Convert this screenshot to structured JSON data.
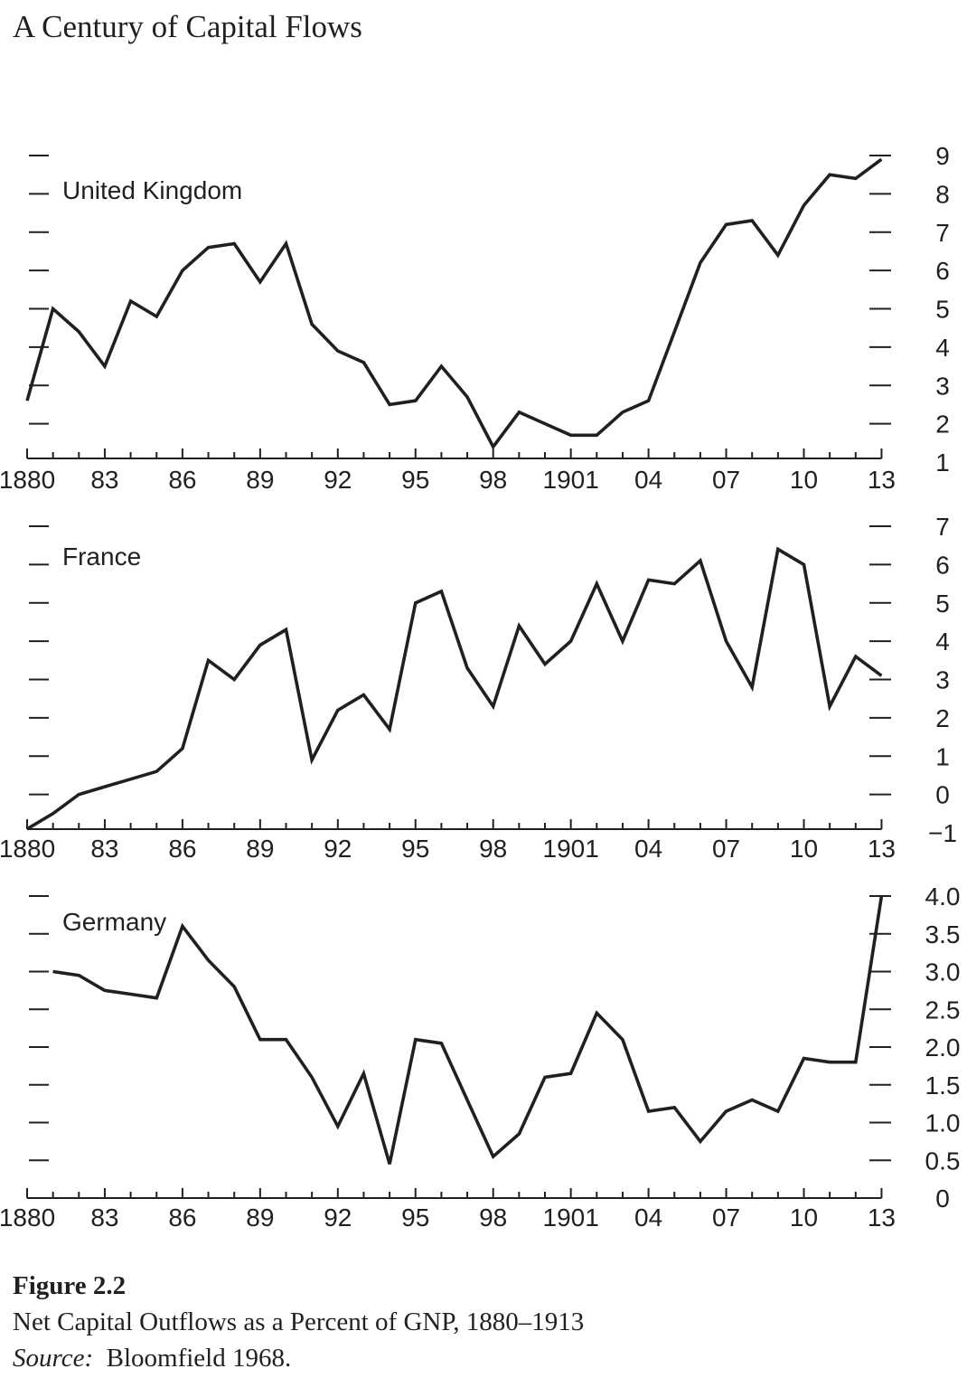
{
  "title": "A Century of Capital Flows",
  "caption": {
    "figure_label": "Figure 2.2",
    "text": "Net Capital Outflows as a Percent of GNP, 1880–1913",
    "source_label": "Source:",
    "source_text": "Bloomfield 1968."
  },
  "chart_data": [
    {
      "type": "line",
      "name": "United Kingdom",
      "x_ticks": [
        "1880",
        "83",
        "86",
        "89",
        "92",
        "95",
        "98",
        "1901",
        "04",
        "07",
        "10",
        "13"
      ],
      "y_ticks": [
        "1",
        "2",
        "3",
        "4",
        "5",
        "6",
        "7",
        "8",
        "9"
      ],
      "ylim": [
        1,
        9
      ],
      "xlim": [
        1880,
        1913
      ],
      "x": [
        1880,
        1881,
        1882,
        1883,
        1884,
        1885,
        1886,
        1887,
        1888,
        1889,
        1890,
        1891,
        1892,
        1893,
        1894,
        1895,
        1896,
        1897,
        1898,
        1899,
        1900,
        1901,
        1902,
        1903,
        1904,
        1905,
        1906,
        1907,
        1908,
        1909,
        1910,
        1911,
        1912,
        1913
      ],
      "values": [
        2.6,
        5.0,
        4.4,
        3.5,
        5.2,
        4.8,
        6.0,
        6.6,
        6.7,
        5.7,
        6.7,
        4.6,
        3.9,
        3.6,
        2.5,
        2.6,
        3.5,
        2.7,
        1.4,
        2.3,
        2.0,
        1.7,
        1.7,
        2.3,
        2.6,
        4.4,
        6.2,
        7.2,
        7.3,
        6.4,
        7.7,
        8.5,
        8.4,
        8.9
      ],
      "color": "#231f20"
    },
    {
      "type": "line",
      "name": "France",
      "x_ticks": [
        "1880",
        "83",
        "86",
        "89",
        "92",
        "95",
        "98",
        "1901",
        "04",
        "07",
        "10",
        "13"
      ],
      "y_ticks": [
        "−1",
        "0",
        "1",
        "2",
        "3",
        "4",
        "5",
        "6",
        "7"
      ],
      "ylim": [
        -1,
        7
      ],
      "xlim": [
        1880,
        1913
      ],
      "x": [
        1880,
        1881,
        1882,
        1883,
        1884,
        1885,
        1886,
        1887,
        1888,
        1889,
        1890,
        1891,
        1892,
        1893,
        1894,
        1895,
        1896,
        1897,
        1898,
        1899,
        1900,
        1901,
        1902,
        1903,
        1904,
        1905,
        1906,
        1907,
        1908,
        1909,
        1910,
        1911,
        1912,
        1913
      ],
      "values": [
        -0.9,
        -0.5,
        0.0,
        0.2,
        0.4,
        0.6,
        1.2,
        3.5,
        3.0,
        3.9,
        4.3,
        0.9,
        2.2,
        2.6,
        1.7,
        5.0,
        5.3,
        3.3,
        2.3,
        4.4,
        3.4,
        4.0,
        5.5,
        4.0,
        5.6,
        5.5,
        6.1,
        4.0,
        2.8,
        6.4,
        6.0,
        2.3,
        3.6,
        3.1
      ],
      "color": "#231f20"
    },
    {
      "type": "line",
      "name": "Germany",
      "x_ticks": [
        "1880",
        "83",
        "86",
        "89",
        "92",
        "95",
        "98",
        "1901",
        "04",
        "07",
        "10",
        "13"
      ],
      "y_ticks": [
        "0",
        "0.5",
        "1.0",
        "1.5",
        "2.0",
        "2.5",
        "3.0",
        "3.5",
        "4.0"
      ],
      "ylim": [
        0,
        4
      ],
      "xlim": [
        1880,
        1913
      ],
      "x": [
        1881,
        1882,
        1883,
        1884,
        1885,
        1886,
        1887,
        1888,
        1889,
        1890,
        1891,
        1892,
        1893,
        1894,
        1895,
        1896,
        1897,
        1898,
        1899,
        1900,
        1901,
        1902,
        1903,
        1904,
        1905,
        1906,
        1907,
        1908,
        1909,
        1910,
        1911,
        1912,
        1913
      ],
      "values": [
        3.0,
        2.95,
        2.75,
        2.7,
        2.65,
        3.6,
        3.15,
        2.8,
        2.1,
        2.1,
        1.6,
        0.95,
        1.65,
        0.45,
        2.1,
        2.05,
        1.3,
        0.55,
        0.85,
        1.6,
        1.65,
        2.45,
        2.1,
        1.15,
        1.2,
        0.75,
        1.15,
        1.3,
        1.15,
        1.85,
        1.8,
        1.8,
        4.0
      ],
      "color": "#231f20"
    }
  ]
}
